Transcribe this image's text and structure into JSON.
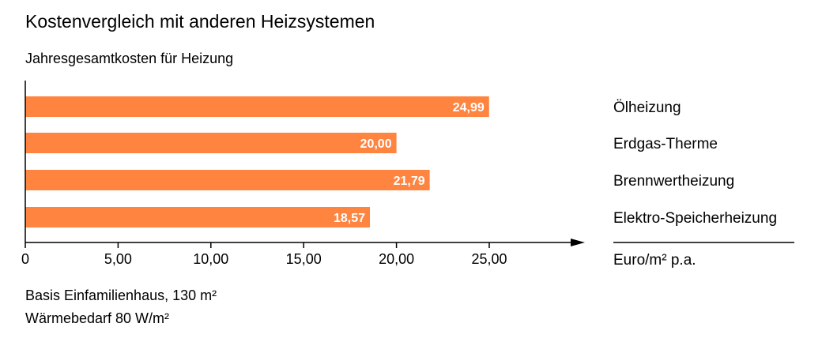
{
  "chart_data": {
    "type": "bar",
    "orientation": "horizontal",
    "title": "Kostenvergleich mit anderen Heizsystemen",
    "subtitle": "Jahresgesamtkosten für Heizung",
    "categories": [
      "Ölheizung",
      "Erdgas-Therme",
      "Brennwertheizung",
      "Elektro-Speicherheizung"
    ],
    "values": [
      24.99,
      20.0,
      21.79,
      18.57
    ],
    "value_labels": [
      "24,99",
      "20,00",
      "21,79",
      "18,57"
    ],
    "xlim": [
      0,
      30
    ],
    "xticks": [
      0,
      5,
      10,
      15,
      20,
      25
    ],
    "xtick_labels": [
      "0",
      "5,00",
      "10,00",
      "15,00",
      "20,00",
      "25,00"
    ],
    "xlabel": "Euro/m² p.a.",
    "bar_color": "#ff8440",
    "grid": false,
    "notes": [
      "Basis Einfamilienhaus, 130 m²",
      "Wärmebedarf 80 W/m²"
    ]
  }
}
